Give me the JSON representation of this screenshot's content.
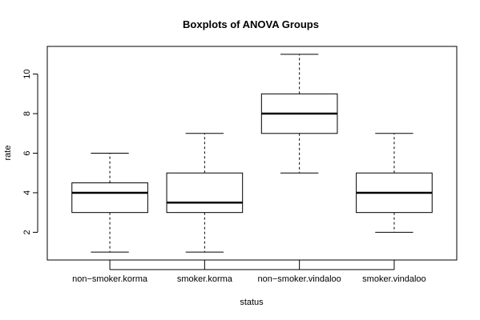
{
  "chart_data": {
    "type": "boxplot",
    "title": "Boxplots of ANOVA Groups",
    "xlabel": "status",
    "ylabel": "rate",
    "ylim": [
      0.6,
      11.4
    ],
    "yticks": [
      2,
      4,
      6,
      8,
      10
    ],
    "grid": false,
    "categories": [
      "non−smoker.korma",
      "smoker.korma",
      "non−smoker.vindaloo",
      "smoker.vindaloo"
    ],
    "boxes": [
      {
        "category": "non−smoker.korma",
        "min": 1,
        "q1": 3,
        "median": 4,
        "q3": 4.5,
        "max": 6
      },
      {
        "category": "smoker.korma",
        "min": 1,
        "q1": 3,
        "median": 3.5,
        "q3": 5,
        "max": 7
      },
      {
        "category": "non−smoker.vindaloo",
        "min": 5,
        "q1": 7,
        "median": 8,
        "q3": 9,
        "max": 11
      },
      {
        "category": "smoker.vindaloo",
        "min": 2,
        "q1": 3,
        "median": 4,
        "q3": 5,
        "max": 7
      }
    ]
  }
}
